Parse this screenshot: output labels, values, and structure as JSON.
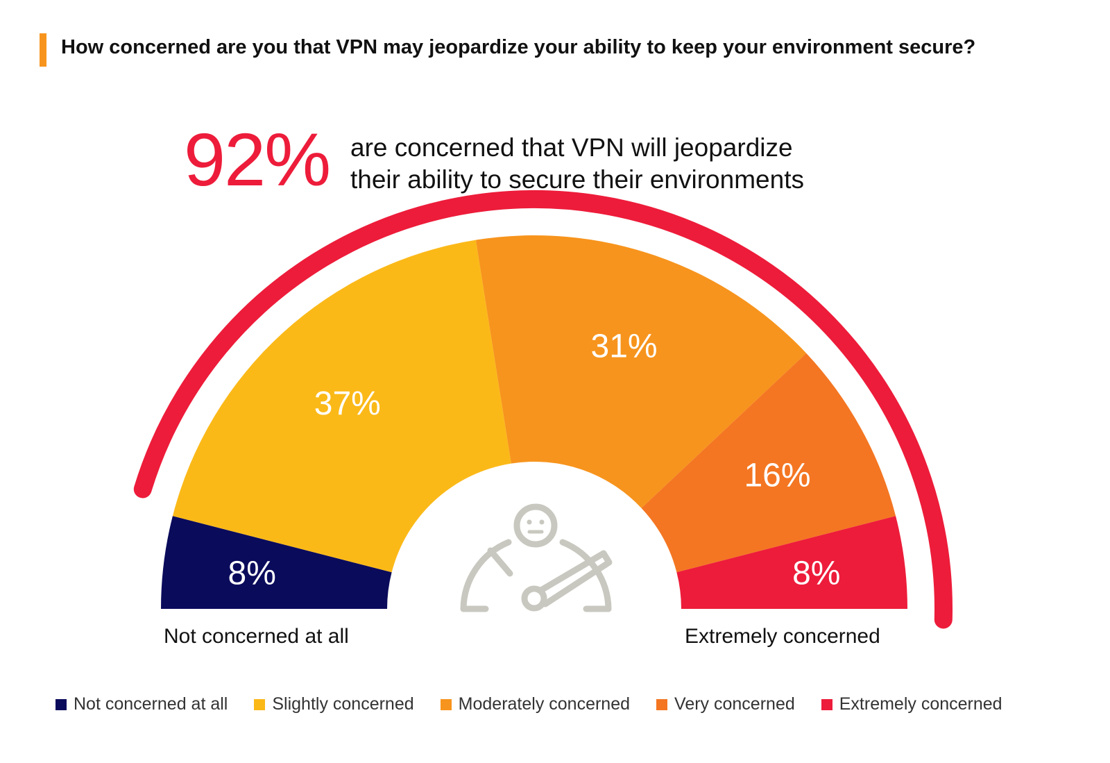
{
  "title": "How concerned are you that VPN may jeopardize your ability to keep your environment secure?",
  "headline": {
    "value": "92%",
    "line1": "are concerned that VPN will jeopardize",
    "line2": "their ability to secure their environments"
  },
  "colors": {
    "accent_bar": "#F7941D",
    "headline": "#ED1C3A",
    "outer_arc": "#ED1C3A",
    "icon": "#C8C8C0"
  },
  "icon": "gauge-person-icon",
  "chart_data": {
    "type": "pie",
    "variant": "semicircle-gauge",
    "categories": [
      "Not concerned at all",
      "Slightly concerned",
      "Moderately concerned",
      "Very concerned",
      "Extremely concerned"
    ],
    "values": [
      8,
      37,
      31,
      16,
      8
    ],
    "labels": [
      "8%",
      "37%",
      "31%",
      "16%",
      "8%"
    ],
    "colors": [
      "#0B0B5C",
      "#FBB918",
      "#F7941D",
      "#F47622",
      "#ED1C3A"
    ],
    "left_label": "Not concerned at all",
    "right_label": "Extremely concerned",
    "legend_position": "bottom"
  }
}
